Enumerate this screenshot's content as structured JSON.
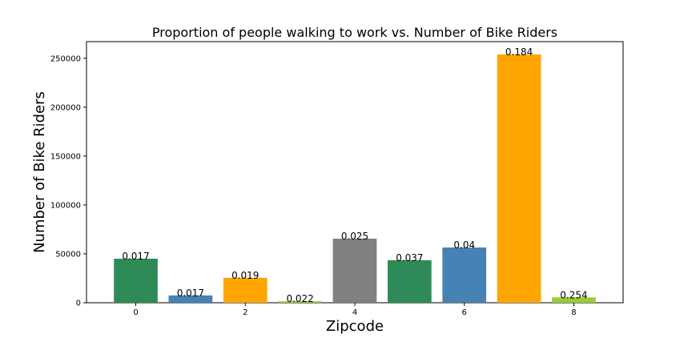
{
  "chart_data": {
    "type": "bar",
    "title": "Proportion of people walking to work vs. Number of Bike Riders",
    "xlabel": "Zipcode",
    "ylabel": "Number of Bike Riders",
    "ylim": [
      0,
      267000
    ],
    "xlim": [
      -0.9,
      8.9
    ],
    "x": [
      0,
      1,
      2,
      3,
      4,
      5,
      6,
      7,
      8
    ],
    "values": [
      45000,
      7500,
      25500,
      1500,
      65500,
      43500,
      56500,
      254000,
      5500
    ],
    "bar_labels": [
      "0.017",
      "0.017",
      "0.019",
      "0.022",
      "0.025",
      "0.037",
      "0.04",
      "0.184",
      "0.254"
    ],
    "colors": [
      "#2e8b57",
      "#4682b4",
      "#ffa500",
      "#9acd32",
      "#808080",
      "#2e8b57",
      "#4682b4",
      "#ffa500",
      "#9acd32"
    ],
    "xticks": [
      0,
      2,
      4,
      6,
      8
    ],
    "yticks": [
      0,
      50000,
      100000,
      150000,
      200000,
      250000
    ],
    "grid": false,
    "legend": "none"
  }
}
